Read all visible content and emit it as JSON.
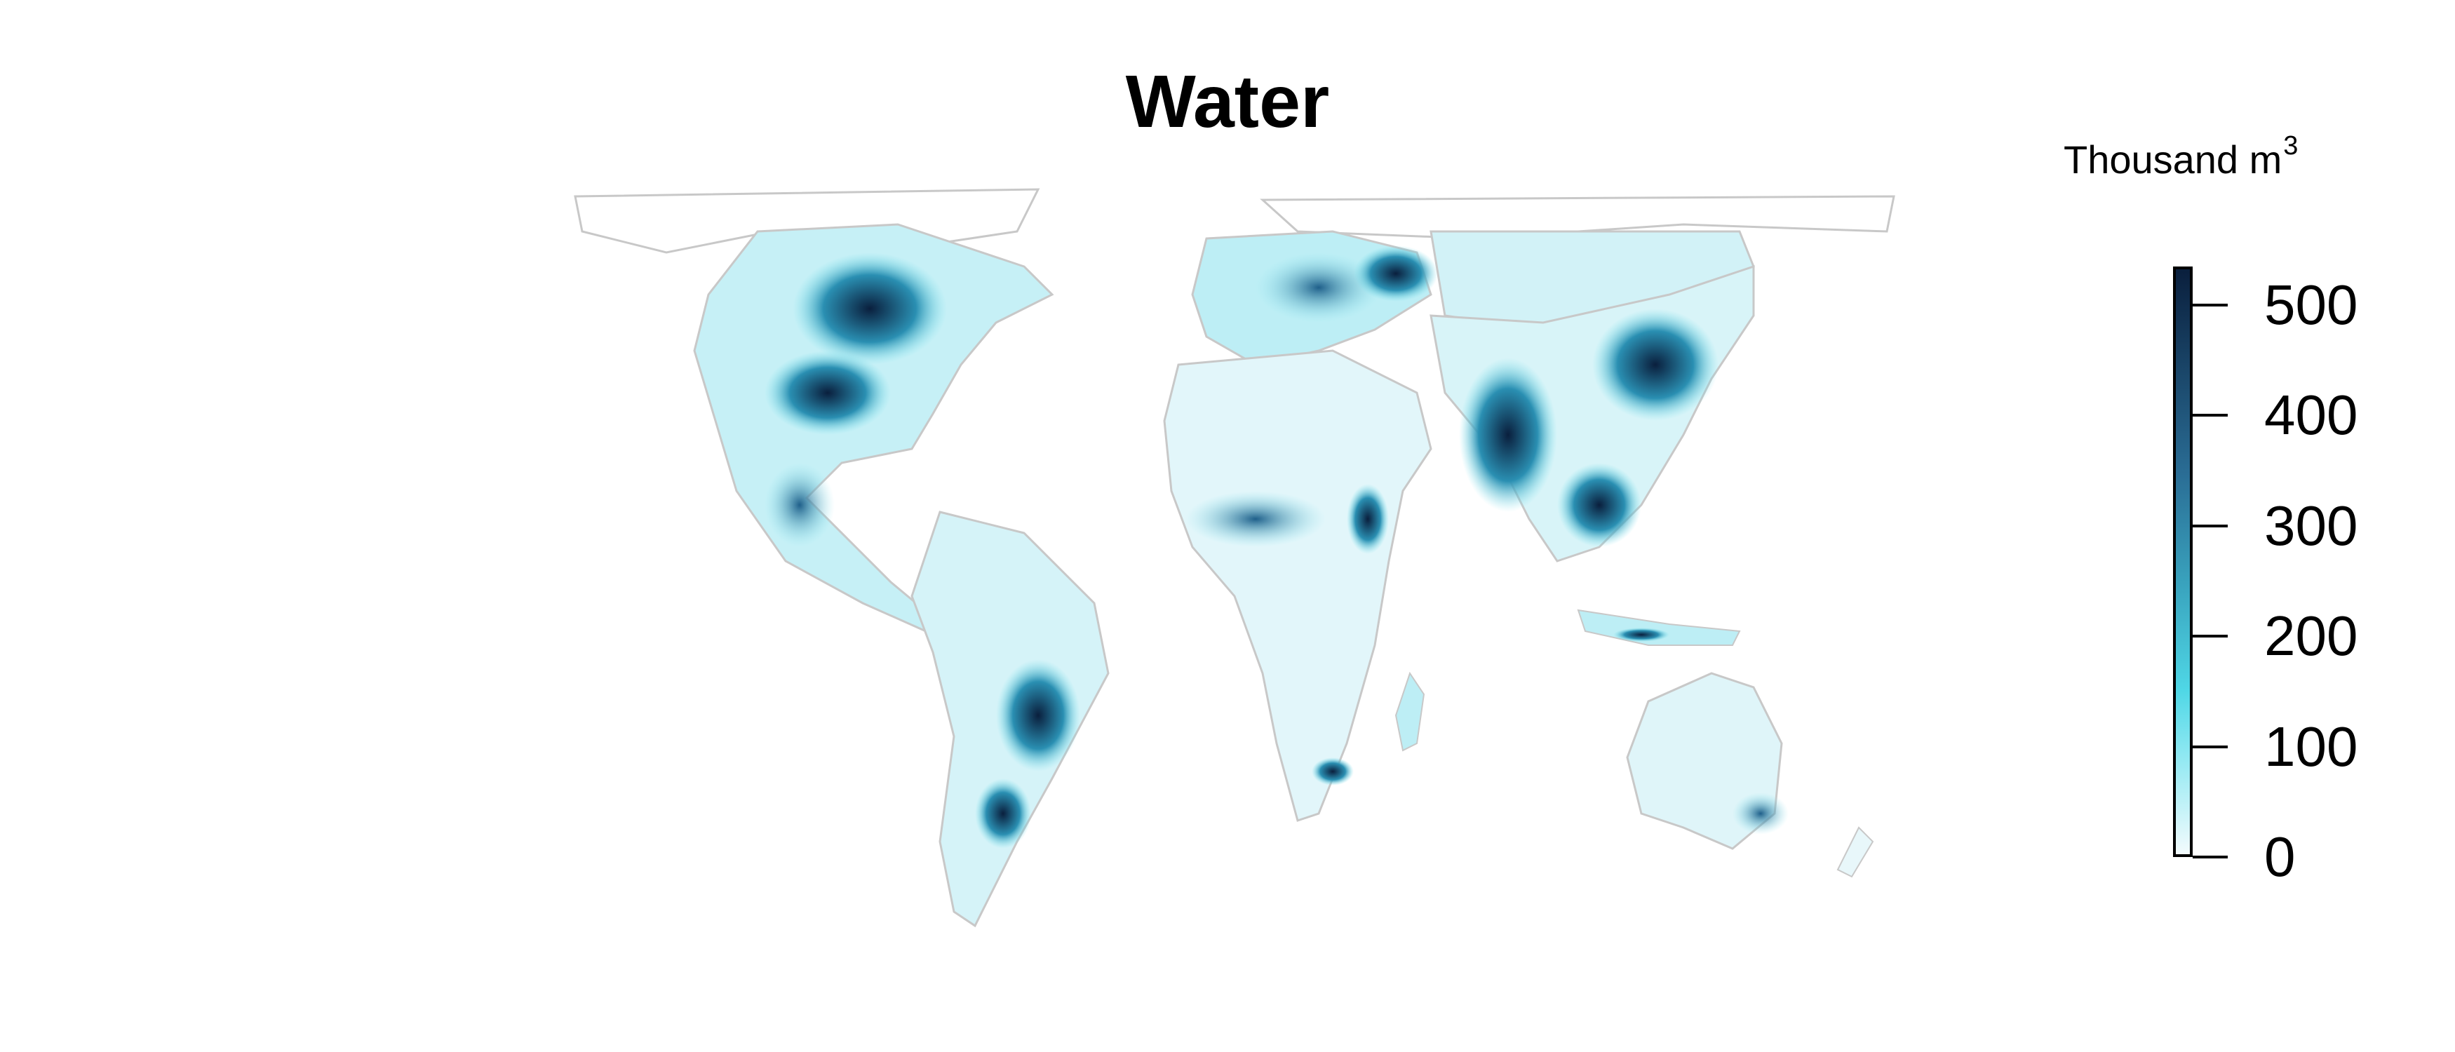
{
  "title": "Water",
  "legend": {
    "unit_label": "Thousand m",
    "unit_superscript": "3",
    "ticks": [
      "0",
      "100",
      "200",
      "300",
      "400",
      "500"
    ],
    "min": 0,
    "max": 530,
    "colors": {
      "low": "#f3fbfd",
      "mid_light": "#4fd7e6",
      "mid": "#2a6d95",
      "high": "#0a1f3d"
    }
  },
  "map": {
    "projection": "world",
    "border_color": "#c8c8c8",
    "regions": [
      "North America",
      "Central America",
      "South America",
      "Europe",
      "Africa",
      "Middle East",
      "Russia",
      "South Asia",
      "East Asia",
      "Southeast Asia",
      "Australia",
      "Greenland"
    ]
  }
}
